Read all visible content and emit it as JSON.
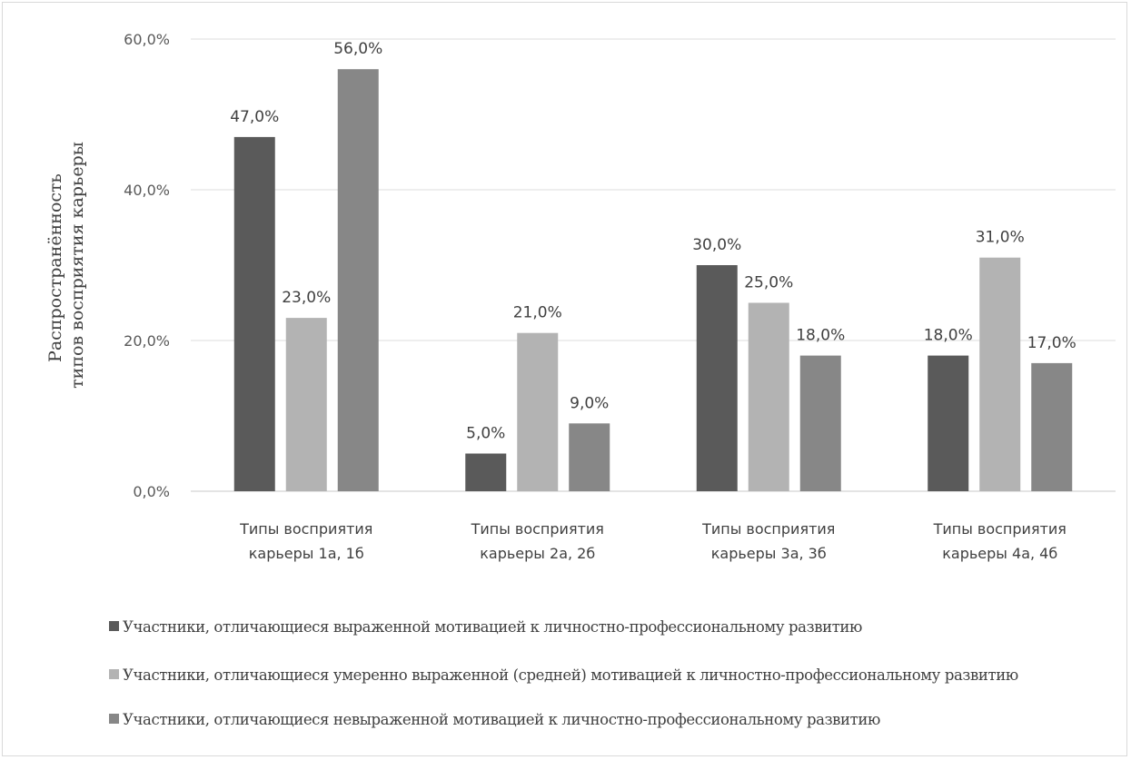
{
  "chart_data": {
    "type": "bar",
    "title": "",
    "xlabel": "",
    "ylabel_lines": [
      "Распространённость",
      "типов восприятия карьеры"
    ],
    "ylim": [
      0,
      60
    ],
    "yticks": [
      0,
      20,
      40,
      60
    ],
    "ytick_labels": [
      "0,0%",
      "20,0%",
      "40,0%",
      "60,0%"
    ],
    "grid": true,
    "legend_position": "bottom",
    "categories": [
      [
        "Типы восприятия",
        "карьеры 1а, 1б"
      ],
      [
        "Типы восприятия",
        "карьеры 2а, 2б"
      ],
      [
        "Типы восприятия",
        "карьеры 3а, 3б"
      ],
      [
        "Типы восприятия",
        "карьеры 4а, 4б"
      ]
    ],
    "series": [
      {
        "name": "Участники, отличающиеся выраженной мотивацией к личностно-профессиональному развитию",
        "color": "#5a5a5a",
        "values": [
          47,
          5,
          30,
          18
        ],
        "labels": [
          "47,0%",
          "5,0%",
          "30,0%",
          "18,0%"
        ]
      },
      {
        "name": "Участники, отличающиеся умеренно выраженной (средней) мотивацией к личностно-профессиональному развитию",
        "color": "#b3b3b3",
        "values": [
          23,
          21,
          25,
          31
        ],
        "labels": [
          "23,0%",
          "21,0%",
          "25,0%",
          "31,0%"
        ]
      },
      {
        "name": "Участники, отличающиеся невыраженной мотивацией к личностно-профессиональному развитию",
        "color": "#878787",
        "values": [
          56,
          9,
          18,
          17
        ],
        "labels": [
          "56,0%",
          "9,0%",
          "18,0%",
          "17,0%"
        ]
      }
    ]
  }
}
